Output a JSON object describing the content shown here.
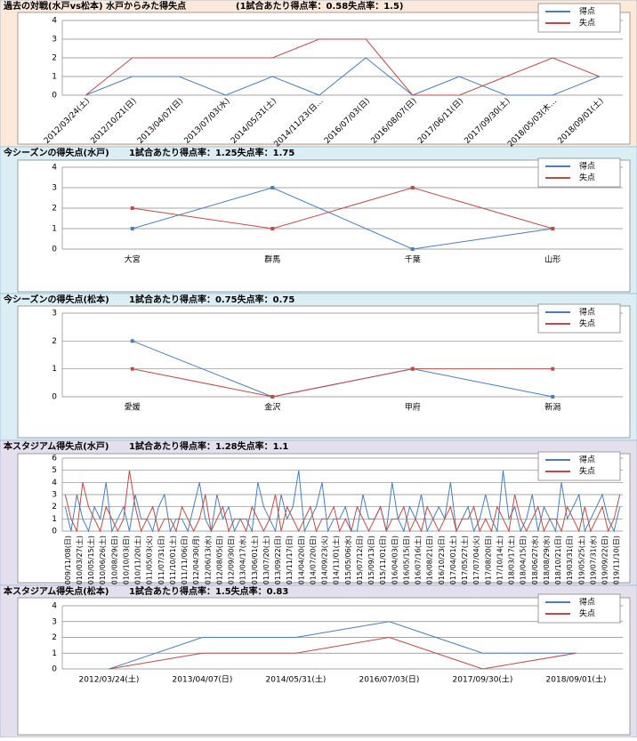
{
  "chart_data": [
    {
      "type": "line",
      "title": "過去の対戦(水戸vs松本) 水戸からみた得失点",
      "subtitle": "(1試合あたり得点率：0.58失点率：1.5)",
      "categories": [
        "2012/03/24(土)",
        "2012/10/21(日)",
        "2013/04/07(日)",
        "2013/07/03(水)",
        "2014/05/31(土)",
        "2014/11/23(日…",
        "2016/07/03(日)",
        "2016/08/07(日)",
        "2017/06/11(日)",
        "2017/09/30(土)",
        "2018/05/03(木…",
        "2018/09/01(土)"
      ],
      "series": [
        {
          "name": "得点",
          "color": "#4a7ebb",
          "values": [
            0,
            1,
            1,
            0,
            1,
            0,
            2,
            0,
            1,
            0,
            0,
            1
          ]
        },
        {
          "name": "失点",
          "color": "#be4b48",
          "values": [
            0,
            2,
            2,
            2,
            2,
            3,
            3,
            0,
            0,
            1,
            2,
            1
          ]
        }
      ],
      "ylim": [
        0,
        4
      ],
      "yticks": [
        0,
        1,
        2,
        3,
        4
      ],
      "grid": true,
      "markers": false,
      "legend": "top-right"
    },
    {
      "type": "line",
      "title": "今シーズンの得失点(水戸)",
      "subtitle": "1試合あたり得点率：1.25失点率：1.75",
      "categories": [
        "大宮",
        "群馬",
        "千葉",
        "山形"
      ],
      "series": [
        {
          "name": "得点",
          "color": "#4a7ebb",
          "values": [
            1,
            3,
            0,
            1
          ]
        },
        {
          "name": "失点",
          "color": "#be4b48",
          "values": [
            2,
            1,
            3,
            1
          ]
        }
      ],
      "ylim": [
        0,
        4
      ],
      "yticks": [
        0,
        1,
        2,
        3,
        4
      ],
      "grid": true,
      "markers": true,
      "legend": "top-right"
    },
    {
      "type": "line",
      "title": "今シーズンの得失点(松本)",
      "subtitle": "1試合あたり得点率：0.75失点率：0.75",
      "categories": [
        "愛媛",
        "金沢",
        "甲府",
        "新潟"
      ],
      "series": [
        {
          "name": "得点",
          "color": "#4a7ebb",
          "values": [
            2,
            0,
            1,
            0
          ]
        },
        {
          "name": "失点",
          "color": "#be4b48",
          "values": [
            1,
            0,
            1,
            1
          ]
        }
      ],
      "ylim": [
        0,
        3
      ],
      "yticks": [
        0,
        1,
        2,
        3
      ],
      "grid": true,
      "markers": true,
      "legend": "top-right"
    },
    {
      "type": "line",
      "title": "本スタジアム得失点(水戸)",
      "subtitle": "1試合あたり得点率：1.28失点率：1.1",
      "categories": [
        "2009/11/08(日)",
        null,
        "2010/03/27(土)",
        null,
        "2010/05/15(土)",
        null,
        "2010/06/26(土)",
        null,
        "2010/08/29(日)",
        null,
        "2010/10/03(日)",
        null,
        "2010/11/20(土)",
        null,
        "2011/05/03(火)",
        null,
        "2011/07/31(日)",
        null,
        "2011/10/01(土)",
        null,
        "2011/11/06(日)",
        null,
        "2012/04/30(月)",
        null,
        "2012/06/13(水)",
        null,
        "2012/08/05(日)",
        null,
        "2012/09/30(日)",
        null,
        "2013/04/17(水)",
        null,
        "2013/06/01(土)",
        null,
        "2013/07/20(土)",
        null,
        "2013/09/22(日)",
        null,
        "2013/11/17(日)",
        null,
        "2014/04/20(日)",
        null,
        "2014/07/20(日)",
        null,
        "2014/09/23(火)",
        null,
        "2014/11/01(土)",
        null,
        "2015/05/06(水)",
        null,
        "2015/07/12(日)",
        null,
        "2015/09/13(日)",
        null,
        "2015/11/01(日)",
        null,
        "2016/04/03(日)",
        null,
        "2016/05/15(日)",
        null,
        "2016/07/16(土)",
        null,
        "2016/08/21(日)",
        null,
        "2016/10/23(日)",
        null,
        "2017/04/01(土)",
        null,
        "2017/05/27(土)",
        null,
        "2017/07/04(火)",
        null,
        "2017/08/20(日)",
        null,
        "2017/10/14(土)",
        null,
        "2018/03/17(土)",
        null,
        "2018/04/15(日)",
        null,
        "2018/06/27(水)",
        null,
        "2018/08/29(水)",
        null,
        "2018/10/21(日)",
        null,
        "2019/03/31(日)",
        null,
        "2019/05/25(土)",
        null,
        "2019/07/31(水)",
        null,
        "2019/09/22(日)",
        null,
        "2019/11/10(日)",
        null
      ],
      "series": [
        {
          "name": "得点",
          "color": "#4a7ebb",
          "values": [
            2,
            0,
            3,
            1,
            0,
            2,
            1,
            4,
            0,
            1,
            2,
            0,
            3,
            1,
            1,
            0,
            2,
            3,
            0,
            1,
            1,
            0,
            2,
            4,
            1,
            0,
            3,
            1,
            2,
            0,
            1,
            1,
            0,
            4,
            2,
            1,
            0,
            3,
            1,
            2,
            5,
            0,
            1,
            2,
            4,
            0,
            1,
            1,
            2,
            0,
            0,
            3,
            1,
            1,
            2,
            0,
            4,
            1,
            0,
            2,
            1,
            3,
            0,
            1,
            2,
            1,
            4,
            0,
            1,
            2,
            0,
            1,
            3,
            1,
            0,
            5,
            1,
            2,
            0,
            1,
            3,
            0,
            2,
            1,
            0,
            4,
            1,
            2,
            3,
            0,
            1,
            2,
            3,
            1,
            0,
            2
          ]
        },
        {
          "name": "失点",
          "color": "#be4b48",
          "values": [
            3,
            1,
            0,
            4,
            2,
            1,
            0,
            2,
            1,
            0,
            1,
            5,
            2,
            0,
            1,
            2,
            0,
            1,
            1,
            0,
            2,
            1,
            0,
            1,
            3,
            0,
            1,
            2,
            0,
            1,
            1,
            0,
            2,
            1,
            0,
            1,
            3,
            0,
            2,
            1,
            0,
            1,
            2,
            0,
            1,
            1,
            2,
            0,
            1,
            0,
            2,
            1,
            0,
            1,
            2,
            0,
            1,
            1,
            2,
            0,
            1,
            0,
            2,
            1,
            0,
            1,
            2,
            0,
            1,
            1,
            2,
            0,
            1,
            0,
            2,
            1,
            0,
            3,
            1,
            0,
            1,
            2,
            0,
            1,
            1,
            0,
            2,
            1,
            0,
            2,
            0,
            1,
            2,
            0,
            1,
            3
          ]
        }
      ],
      "ylim": [
        0,
        6
      ],
      "yticks": [
        0,
        1,
        2,
        3,
        4,
        5,
        6
      ],
      "grid": true,
      "markers": false,
      "legend": "top-right"
    },
    {
      "type": "line",
      "title": "本スタジアム得失点(松本)",
      "subtitle": "1試合あたり得点率：1.5失点率：0.83",
      "categories": [
        "2012/03/24(土)",
        "2013/04/07(日)",
        "2014/05/31(土)",
        "2016/07/03(日)",
        "2017/09/30(土)",
        "2018/09/01(土)"
      ],
      "series": [
        {
          "name": "得点",
          "color": "#4a7ebb",
          "values": [
            0,
            2,
            2,
            3,
            1,
            1
          ]
        },
        {
          "name": "失点",
          "color": "#be4b48",
          "values": [
            0,
            1,
            1,
            2,
            0,
            1
          ]
        }
      ],
      "ylim": [
        0,
        4
      ],
      "yticks": [
        0,
        1,
        2,
        3,
        4
      ],
      "grid": true,
      "markers": false,
      "legend": "top-right"
    }
  ]
}
